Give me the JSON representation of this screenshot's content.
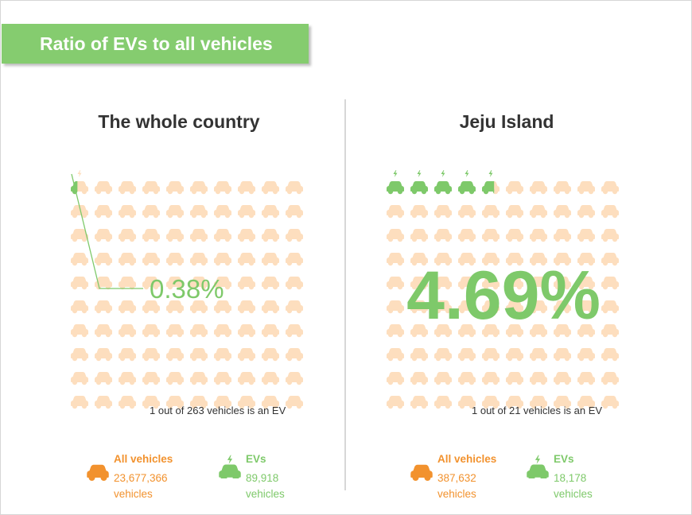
{
  "title": "Ratio of EVs to all vehicles",
  "colors": {
    "banner": "#85cc6f",
    "car": "#fddebe",
    "ev": "#7ec96a",
    "orange": "#f2922e",
    "ev_text": "#7ec96a"
  },
  "chart_data": [
    {
      "type": "waffle",
      "title": "The whole country",
      "grid": {
        "rows": 10,
        "cols": 10
      },
      "ev_share_percent": 0.38,
      "percent_label": "0.38%",
      "ratio_caption": "1 out of 263 vehicles is an EV",
      "legend": [
        {
          "label": "All vehicles",
          "value": "23,677,366",
          "unit": "vehicles",
          "icon": "car-icon"
        },
        {
          "label": "EVs",
          "value": "89,918",
          "unit": "vehicles",
          "icon": "ev-car-icon"
        }
      ]
    },
    {
      "type": "waffle",
      "title": "Jeju Island",
      "grid": {
        "rows": 10,
        "cols": 10
      },
      "ev_share_percent": 4.69,
      "percent_label": "4.69%",
      "ratio_caption": "1 out of 21 vehicles is an EV",
      "legend": [
        {
          "label": "All vehicles",
          "value": "387,632",
          "unit": "vehicles",
          "icon": "car-icon"
        },
        {
          "label": "EVs",
          "value": "18,178",
          "unit": "vehicles",
          "icon": "ev-car-icon"
        }
      ]
    }
  ]
}
